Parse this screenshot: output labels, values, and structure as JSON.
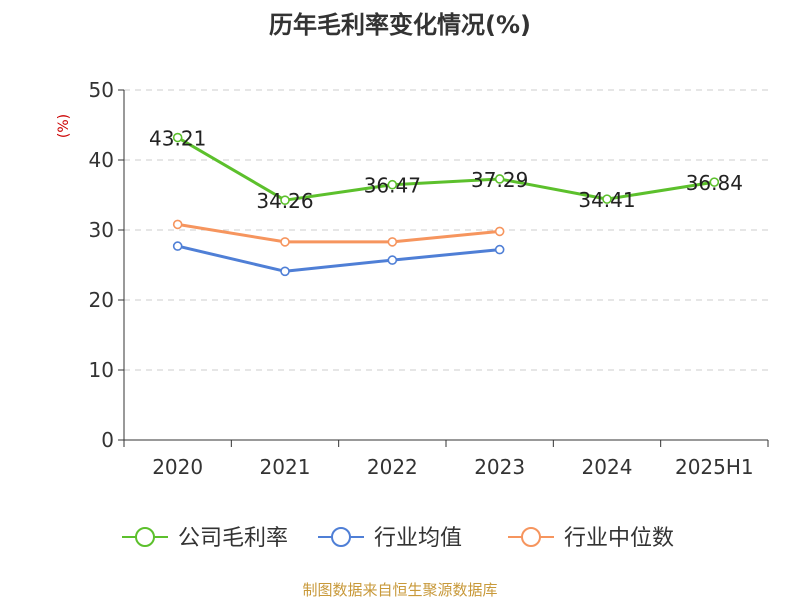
{
  "chart_data": {
    "type": "line",
    "title": "历年毛利率变化情况(%)",
    "ylabel": "(%)",
    "xlabel": "",
    "categories": [
      "2020",
      "2021",
      "2022",
      "2023",
      "2024",
      "2025H1"
    ],
    "ylim": [
      0,
      50
    ],
    "yticks": [
      0,
      10,
      20,
      30,
      40,
      50
    ],
    "grid": true,
    "legend_position": "bottom",
    "series": [
      {
        "name": "公司毛利率",
        "color": "#5cc02c",
        "values": [
          43.21,
          34.26,
          36.47,
          37.29,
          34.41,
          36.84
        ],
        "data_labels": [
          "43.21",
          "34.26",
          "36.47",
          "37.29",
          "34.41",
          "36.84"
        ]
      },
      {
        "name": "行业均值",
        "color": "#4f7fd6",
        "values": [
          27.7,
          24.1,
          25.7,
          27.2,
          null,
          null
        ],
        "data_labels": []
      },
      {
        "name": "行业中位数",
        "color": "#f6955e",
        "values": [
          30.8,
          28.3,
          28.3,
          29.8,
          null,
          null
        ],
        "data_labels": []
      }
    ]
  },
  "source": "制图数据来自恒生聚源数据库",
  "colors": {
    "title": "#333333",
    "axis": "#333333",
    "grid": "#cccccc",
    "ylabel": "#cc0000",
    "source": "#c8993a"
  }
}
